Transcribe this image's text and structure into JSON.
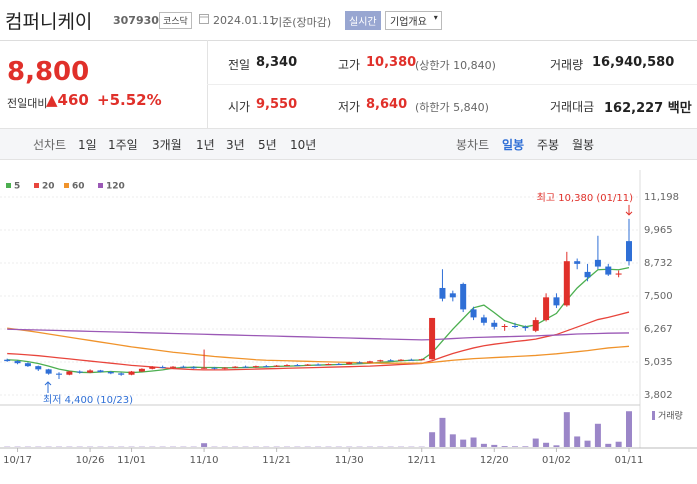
{
  "header": {
    "name": "컴퍼니케이",
    "code": "307930",
    "market": "코스닥",
    "date": "2024.01.11",
    "basis": "기준(장마감)",
    "realtime": "실시간",
    "company_info": "기업개요"
  },
  "summary": {
    "price": "8,800",
    "change_label": "전일대비",
    "change": "460",
    "change_pct": "+5.52%",
    "rows": [
      [
        {
          "label": "전일",
          "value": "8,340"
        },
        {
          "label": "고가",
          "value": "10,380",
          "note": "(상한가 10,840)"
        },
        {
          "label": "거래량",
          "value": "16,940,580"
        }
      ],
      [
        {
          "label": "시가",
          "value": "9,550"
        },
        {
          "label": "저가",
          "value": "8,640",
          "note": "(하한가 5,840)"
        },
        {
          "label": "거래대금",
          "value": "162,227 백만"
        }
      ]
    ]
  },
  "tabs": {
    "line_label": "선차트",
    "line_items": [
      "1일",
      "1주일",
      "3개월",
      "1년",
      "3년",
      "5년",
      "10년"
    ],
    "candle_label": "봉차트",
    "candle_items": [
      "일봉",
      "주봉",
      "월봉"
    ]
  },
  "chart_data": {
    "type": "candlestick",
    "categories": [
      null,
      "10/17",
      null,
      null,
      null,
      null,
      null,
      null,
      "10/26",
      null,
      null,
      null,
      "11/01",
      null,
      null,
      null,
      null,
      null,
      null,
      "11/10",
      null,
      null,
      null,
      null,
      null,
      null,
      "11/21",
      null,
      null,
      null,
      null,
      null,
      null,
      "11/30",
      null,
      null,
      null,
      null,
      null,
      null,
      "12/11",
      null,
      null,
      null,
      null,
      null,
      null,
      "12/20",
      null,
      null,
      null,
      null,
      null,
      "01/02",
      null,
      null,
      null,
      null,
      null,
      null,
      "01/11"
    ],
    "ohlc": [
      [
        5120,
        5160,
        5040,
        5070
      ],
      [
        5070,
        5100,
        4950,
        4990
      ],
      [
        4990,
        5020,
        4850,
        4880
      ],
      [
        4880,
        4900,
        4700,
        4760
      ],
      [
        4760,
        4780,
        4560,
        4600
      ],
      [
        4600,
        4650,
        4400,
        4560
      ],
      [
        4560,
        4700,
        4540,
        4680
      ],
      [
        4680,
        4720,
        4600,
        4640
      ],
      [
        4640,
        4760,
        4620,
        4720
      ],
      [
        4720,
        4740,
        4640,
        4660
      ],
      [
        4660,
        4700,
        4580,
        4610
      ],
      [
        4610,
        4640,
        4520,
        4560
      ],
      [
        4560,
        4700,
        4540,
        4680
      ],
      [
        4680,
        4800,
        4660,
        4780
      ],
      [
        4780,
        4880,
        4760,
        4850
      ],
      [
        4850,
        4900,
        4800,
        4820
      ],
      [
        4820,
        4880,
        4780,
        4860
      ],
      [
        4860,
        4900,
        4820,
        4840
      ],
      [
        4840,
        4880,
        4780,
        4800
      ],
      [
        4800,
        5500,
        4780,
        4820
      ],
      [
        4820,
        4850,
        4760,
        4790
      ],
      [
        4790,
        4840,
        4760,
        4820
      ],
      [
        4820,
        4880,
        4800,
        4860
      ],
      [
        4860,
        4900,
        4830,
        4850
      ],
      [
        4850,
        4900,
        4820,
        4880
      ],
      [
        4880,
        4920,
        4850,
        4870
      ],
      [
        4870,
        4920,
        4850,
        4900
      ],
      [
        4900,
        4950,
        4880,
        4920
      ],
      [
        4920,
        4960,
        4890,
        4910
      ],
      [
        4910,
        4960,
        4900,
        4940
      ],
      [
        4940,
        4980,
        4910,
        4930
      ],
      [
        4930,
        4980,
        4920,
        4960
      ],
      [
        4960,
        5000,
        4930,
        4950
      ],
      [
        4950,
        5040,
        4940,
        5020
      ],
      [
        5020,
        5060,
        4990,
        5010
      ],
      [
        5010,
        5080,
        5000,
        5060
      ],
      [
        5060,
        5120,
        5040,
        5100
      ],
      [
        5100,
        5140,
        5080,
        5090
      ],
      [
        5090,
        5140,
        5070,
        5120
      ],
      [
        5120,
        5160,
        5100,
        5110
      ],
      [
        5110,
        5160,
        5090,
        5140
      ],
      [
        5140,
        6680,
        5120,
        6680
      ],
      [
        7800,
        8500,
        7300,
        7400
      ],
      [
        7600,
        7700,
        7300,
        7450
      ],
      [
        7950,
        8000,
        6900,
        7000
      ],
      [
        7000,
        7100,
        6600,
        6700
      ],
      [
        6700,
        6800,
        6400,
        6500
      ],
      [
        6500,
        6600,
        6250,
        6350
      ],
      [
        6350,
        6450,
        6200,
        6380
      ],
      [
        6380,
        6500,
        6300,
        6350
      ],
      [
        6350,
        6400,
        6200,
        6300
      ],
      [
        6200,
        6700,
        6150,
        6600
      ],
      [
        6600,
        7600,
        6550,
        7450
      ],
      [
        7450,
        7600,
        7050,
        7150
      ],
      [
        7150,
        9150,
        7100,
        8800
      ],
      [
        8800,
        8900,
        8500,
        8700
      ],
      [
        8400,
        8700,
        8050,
        8200
      ],
      [
        8850,
        9750,
        8500,
        8600
      ],
      [
        8600,
        8700,
        8250,
        8300
      ],
      [
        8300,
        8450,
        8200,
        8340
      ],
      [
        9550,
        10380,
        8640,
        8800
      ]
    ],
    "up_color": "#e0302a",
    "down_color": "#2f6fd6",
    "ylim": [
      3802,
      11198
    ],
    "yticks": [
      {
        "value": 3802,
        "label": "3,802"
      },
      {
        "value": 5035,
        "label": "5,035"
      },
      {
        "value": 6267,
        "label": "6,267"
      },
      {
        "value": 7500,
        "label": "7,500"
      },
      {
        "value": 8732,
        "label": "8,732"
      },
      {
        "value": 9965,
        "label": "9,965"
      },
      {
        "value": 11198,
        "label": "11,198"
      }
    ],
    "grid": true,
    "series": [
      {
        "name": "5",
        "color": "#4caf50",
        "values": [
          5120,
          5100,
          5050,
          4980,
          4880,
          4770,
          4700,
          4650,
          4640,
          4660,
          4680,
          4660,
          4640,
          4660,
          4700,
          4740,
          4800,
          4830,
          4840,
          4830,
          4830,
          4820,
          4820,
          4830,
          4840,
          4850,
          4870,
          4880,
          4890,
          4910,
          4920,
          4930,
          4940,
          4950,
          4970,
          4990,
          5020,
          5050,
          5080,
          5100,
          5110,
          5380,
          5820,
          6260,
          6660,
          7060,
          7160,
          6880,
          6580,
          6450,
          6350,
          6420,
          6640,
          6850,
          7350,
          7800,
          8150,
          8480,
          8500,
          8480,
          8560
        ]
      },
      {
        "name": "20",
        "color": "#e8453c",
        "values": [
          5350,
          5330,
          5300,
          5270,
          5230,
          5190,
          5150,
          5110,
          5070,
          5030,
          4990,
          4950,
          4910,
          4880,
          4850,
          4820,
          4790,
          4770,
          4750,
          4740,
          4740,
          4740,
          4750,
          4760,
          4770,
          4780,
          4790,
          4800,
          4810,
          4820,
          4830,
          4840,
          4850,
          4860,
          4870,
          4880,
          4900,
          4920,
          4940,
          4960,
          4980,
          5080,
          5220,
          5350,
          5460,
          5560,
          5640,
          5700,
          5750,
          5800,
          5840,
          5890,
          5980,
          6060,
          6200,
          6340,
          6480,
          6620,
          6700,
          6800,
          6900
        ]
      },
      {
        "name": "60",
        "color": "#f0932b",
        "values": [
          6300,
          6250,
          6200,
          6140,
          6080,
          6020,
          5960,
          5900,
          5840,
          5780,
          5720,
          5660,
          5600,
          5550,
          5500,
          5450,
          5400,
          5360,
          5320,
          5280,
          5240,
          5210,
          5180,
          5150,
          5120,
          5100,
          5090,
          5080,
          5070,
          5060,
          5050,
          5040,
          5030,
          5020,
          5010,
          5000,
          4990,
          4990,
          4990,
          4990,
          4990,
          5020,
          5060,
          5100,
          5130,
          5160,
          5180,
          5200,
          5220,
          5240,
          5260,
          5280,
          5310,
          5340,
          5380,
          5420,
          5460,
          5510,
          5560,
          5590,
          5620
        ]
      },
      {
        "name": "120",
        "color": "#9b59b6",
        "values": [
          6260,
          6250,
          6240,
          6230,
          6220,
          6210,
          6200,
          6190,
          6180,
          6170,
          6160,
          6150,
          6140,
          6130,
          6120,
          6110,
          6100,
          6090,
          6080,
          6070,
          6060,
          6050,
          6040,
          6030,
          6020,
          6010,
          6000,
          5990,
          5980,
          5970,
          5960,
          5950,
          5940,
          5930,
          5920,
          5910,
          5900,
          5890,
          5880,
          5870,
          5860,
          5870,
          5890,
          5910,
          5930,
          5950,
          5960,
          5970,
          5980,
          5990,
          6000,
          6010,
          6030,
          6040,
          6060,
          6080,
          6090,
          6100,
          6110,
          6115,
          6120
        ]
      }
    ],
    "volume": {
      "name": "거래량",
      "color": "#9b86c8",
      "ylim": [
        0,
        18000000
      ],
      "values": [
        150000,
        150000,
        150000,
        150000,
        150000,
        150000,
        150000,
        150000,
        150000,
        150000,
        150000,
        150000,
        150000,
        150000,
        150000,
        150000,
        150000,
        150000,
        150000,
        1800000,
        150000,
        150000,
        150000,
        150000,
        150000,
        150000,
        150000,
        150000,
        150000,
        150000,
        150000,
        150000,
        150000,
        150000,
        150000,
        150000,
        150000,
        150000,
        150000,
        150000,
        150000,
        7000000,
        13800000,
        6000000,
        3500000,
        4500000,
        1500000,
        1000000,
        400000,
        300000,
        300000,
        4000000,
        2000000,
        800000,
        16500000,
        5000000,
        3000000,
        11000000,
        1500000,
        2500000,
        16940580
      ]
    },
    "high_annotation": "최고 10,380 (01/11)",
    "low_annotation": "최저 4,400 (10/23)"
  }
}
